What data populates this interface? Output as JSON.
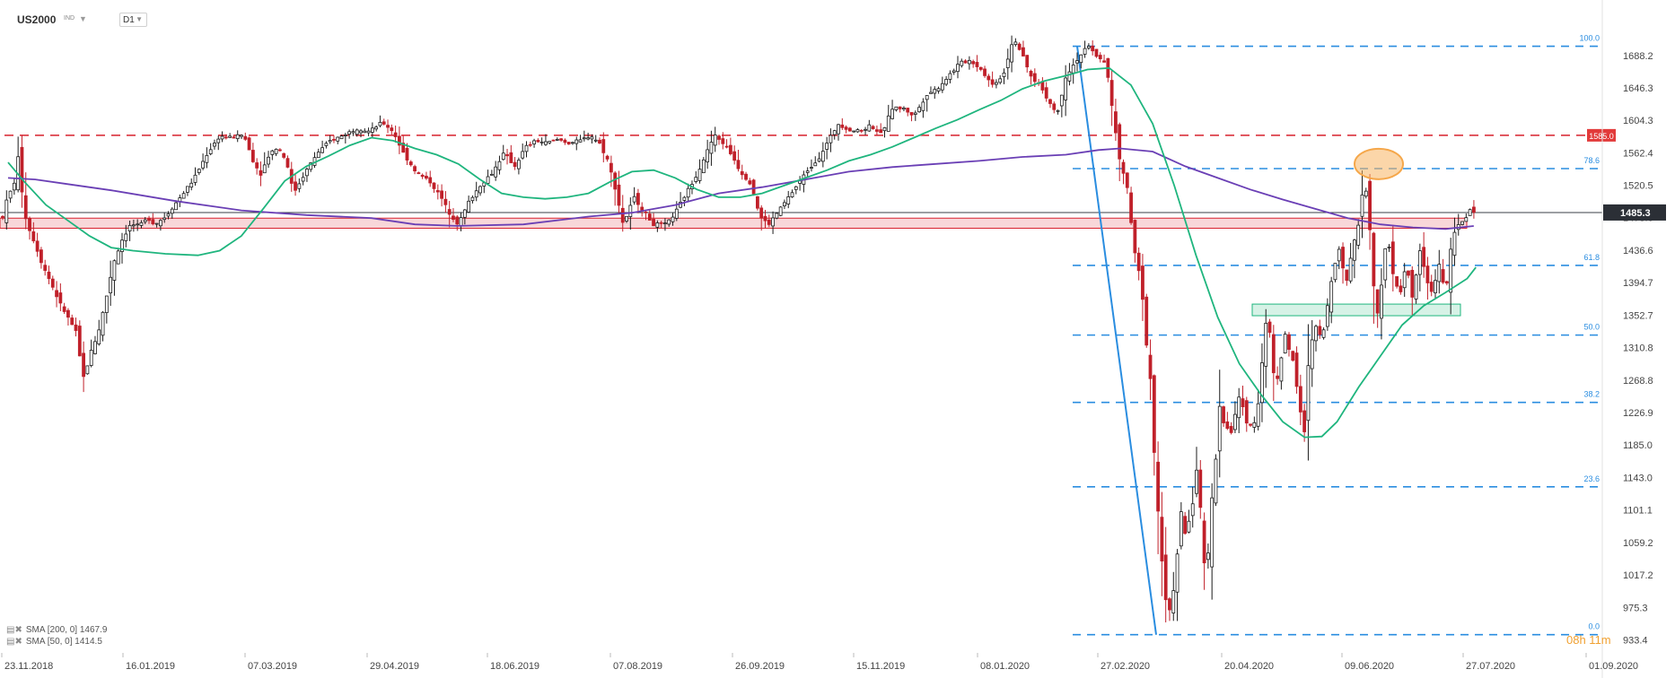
{
  "header": {
    "symbol": "US2000",
    "sub": "IND",
    "timeframe": "D1"
  },
  "legend": [
    {
      "label": "SMA [200, 0] 1467.9",
      "color": "#6a3fb5"
    },
    {
      "label": "SMA [50, 0] 1414.5",
      "color": "#1fb57e"
    }
  ],
  "countdown": "08h 11m",
  "colors": {
    "up": "#1b1b1b",
    "down": "#c0202a",
    "fib": "#2a8de0",
    "resistance": "#d8202c",
    "sma200": "#6a3fb5",
    "sma50": "#1fb57e",
    "price_tag": "#2b2f36",
    "zone_red": "#f8d7d9",
    "zone_green": "#d6f2e6",
    "ellipse": "#f5a74a"
  },
  "chart_data": {
    "type": "candlestick",
    "ylim": [
      920,
      1725
    ],
    "y_ticks": [
      "1688.2",
      "1646.3",
      "1604.3",
      "1562.4",
      "1520.5",
      "1478.6",
      "1436.6",
      "1394.7",
      "1352.7",
      "1310.8",
      "1268.8",
      "1226.9",
      "1185.0",
      "1143.0",
      "1101.1",
      "1059.2",
      "1017.2",
      "975.3",
      "933.4"
    ],
    "x_ticks": [
      "23.11.2018",
      "16.01.2019",
      "07.03.2019",
      "29.04.2019",
      "18.06.2019",
      "07.08.2019",
      "26.09.2019",
      "15.11.2019",
      "08.01.2020",
      "27.02.2020",
      "20.04.2020",
      "09.06.2020",
      "27.07.2020",
      "01.09.2020"
    ],
    "current_price": "1485.3",
    "resistance": {
      "value": 1585.0,
      "label": "1585.0"
    },
    "fib_levels": [
      {
        "value": 1700,
        "label": "100.0"
      },
      {
        "value": 1542,
        "label": "78.6"
      },
      {
        "value": 1417,
        "label": "61.8"
      },
      {
        "value": 1327,
        "label": "50.0"
      },
      {
        "value": 1240,
        "label": "38.2"
      },
      {
        "value": 1131,
        "label": "23.6"
      },
      {
        "value": 940,
        "label": "0.0"
      }
    ],
    "zones": [
      {
        "type": "red",
        "from": 1465,
        "to": 1478
      },
      {
        "type": "green",
        "from": 1352,
        "to": 1367
      }
    ],
    "price_path": [
      [
        0,
        1480
      ],
      [
        5,
        1508
      ],
      [
        10,
        1518
      ],
      [
        14,
        1558
      ],
      [
        18,
        1510
      ],
      [
        22,
        1472
      ],
      [
        28,
        1452
      ],
      [
        36,
        1420
      ],
      [
        44,
        1396
      ],
      [
        52,
        1370
      ],
      [
        60,
        1350
      ],
      [
        68,
        1330
      ],
      [
        72,
        1288
      ],
      [
        75,
        1270
      ],
      [
        80,
        1300
      ],
      [
        88,
        1330
      ],
      [
        95,
        1372
      ],
      [
        102,
        1420
      ],
      [
        110,
        1450
      ],
      [
        118,
        1470
      ],
      [
        126,
        1468
      ],
      [
        134,
        1478
      ],
      [
        140,
        1470
      ],
      [
        150,
        1480
      ],
      [
        162,
        1502
      ],
      [
        176,
        1528
      ],
      [
        188,
        1560
      ],
      [
        200,
        1584
      ],
      [
        212,
        1582
      ],
      [
        222,
        1586
      ],
      [
        232,
        1548
      ],
      [
        238,
        1535
      ],
      [
        246,
        1562
      ],
      [
        254,
        1570
      ],
      [
        262,
        1550
      ],
      [
        268,
        1510
      ],
      [
        278,
        1535
      ],
      [
        290,
        1562
      ],
      [
        302,
        1578
      ],
      [
        314,
        1585
      ],
      [
        326,
        1594
      ],
      [
        338,
        1590
      ],
      [
        350,
        1602
      ],
      [
        360,
        1590
      ],
      [
        370,
        1560
      ],
      [
        382,
        1536
      ],
      [
        394,
        1525
      ],
      [
        404,
        1505
      ],
      [
        412,
        1484
      ],
      [
        420,
        1470
      ],
      [
        430,
        1500
      ],
      [
        440,
        1520
      ],
      [
        452,
        1538
      ],
      [
        462,
        1562
      ],
      [
        472,
        1545
      ],
      [
        482,
        1570
      ],
      [
        492,
        1578
      ],
      [
        502,
        1575
      ],
      [
        512,
        1580
      ],
      [
        522,
        1575
      ],
      [
        532,
        1578
      ],
      [
        542,
        1585
      ],
      [
        550,
        1575
      ],
      [
        558,
        1552
      ],
      [
        564,
        1520
      ],
      [
        572,
        1470
      ],
      [
        582,
        1505
      ],
      [
        592,
        1485
      ],
      [
        600,
        1470
      ],
      [
        612,
        1470
      ],
      [
        620,
        1485
      ],
      [
        630,
        1510
      ],
      [
        640,
        1535
      ],
      [
        648,
        1560
      ],
      [
        656,
        1585
      ],
      [
        664,
        1575
      ],
      [
        672,
        1560
      ],
      [
        680,
        1538
      ],
      [
        690,
        1522
      ],
      [
        698,
        1480
      ],
      [
        706,
        1470
      ],
      [
        714,
        1485
      ],
      [
        722,
        1500
      ],
      [
        732,
        1520
      ],
      [
        742,
        1540
      ],
      [
        752,
        1555
      ],
      [
        760,
        1575
      ],
      [
        770,
        1600
      ],
      [
        780,
        1592
      ],
      [
        790,
        1590
      ],
      [
        800,
        1598
      ],
      [
        810,
        1586
      ],
      [
        820,
        1620
      ],
      [
        830,
        1620
      ],
      [
        840,
        1610
      ],
      [
        852,
        1638
      ],
      [
        862,
        1646
      ],
      [
        872,
        1662
      ],
      [
        882,
        1678
      ],
      [
        892,
        1682
      ],
      [
        902,
        1670
      ],
      [
        912,
        1650
      ],
      [
        922,
        1662
      ],
      [
        932,
        1712
      ],
      [
        940,
        1688
      ],
      [
        948,
        1660
      ],
      [
        956,
        1650
      ],
      [
        966,
        1625
      ],
      [
        972,
        1612
      ],
      [
        980,
        1662
      ],
      [
        990,
        1682
      ],
      [
        1000,
        1700
      ],
      [
        1008,
        1688
      ],
      [
        1016,
        1680
      ],
      [
        1020,
        1650
      ],
      [
        1024,
        1605
      ],
      [
        1030,
        1550
      ],
      [
        1038,
        1510
      ],
      [
        1042,
        1440
      ],
      [
        1046,
        1420
      ],
      [
        1050,
        1385
      ],
      [
        1054,
        1320
      ],
      [
        1058,
        1270
      ],
      [
        1062,
        1160
      ],
      [
        1066,
        1080
      ],
      [
        1070,
        1010
      ],
      [
        1074,
        960
      ],
      [
        1078,
        985
      ],
      [
        1082,
        1030
      ],
      [
        1086,
        1100
      ],
      [
        1090,
        1070
      ],
      [
        1096,
        1100
      ],
      [
        1102,
        1170
      ],
      [
        1106,
        1040
      ],
      [
        1110,
        1020
      ],
      [
        1114,
        1110
      ],
      [
        1118,
        1160
      ],
      [
        1122,
        1240
      ],
      [
        1126,
        1210
      ],
      [
        1132,
        1200
      ],
      [
        1140,
        1250
      ],
      [
        1148,
        1205
      ],
      [
        1156,
        1220
      ],
      [
        1162,
        1310
      ],
      [
        1166,
        1365
      ],
      [
        1170,
        1290
      ],
      [
        1174,
        1260
      ],
      [
        1182,
        1328
      ],
      [
        1190,
        1290
      ],
      [
        1196,
        1230
      ],
      [
        1200,
        1200
      ],
      [
        1204,
        1300
      ],
      [
        1210,
        1340
      ],
      [
        1216,
        1320
      ],
      [
        1222,
        1370
      ],
      [
        1226,
        1410
      ],
      [
        1232,
        1440
      ],
      [
        1238,
        1390
      ],
      [
        1244,
        1440
      ],
      [
        1250,
        1470
      ],
      [
        1254,
        1520
      ],
      [
        1258,
        1510
      ],
      [
        1262,
        1430
      ],
      [
        1266,
        1345
      ],
      [
        1270,
        1380
      ],
      [
        1276,
        1460
      ],
      [
        1282,
        1400
      ],
      [
        1288,
        1380
      ],
      [
        1294,
        1420
      ],
      [
        1300,
        1370
      ],
      [
        1306,
        1440
      ],
      [
        1312,
        1400
      ],
      [
        1318,
        1380
      ],
      [
        1324,
        1420
      ],
      [
        1330,
        1380
      ],
      [
        1336,
        1450
      ],
      [
        1342,
        1470
      ],
      [
        1348,
        1478
      ],
      [
        1354,
        1490
      ],
      [
        1357,
        1485
      ]
    ],
    "sma200": [
      [
        5,
        1530
      ],
      [
        30,
        1528
      ],
      [
        60,
        1522
      ],
      [
        100,
        1514
      ],
      [
        160,
        1500
      ],
      [
        220,
        1488
      ],
      [
        280,
        1482
      ],
      [
        340,
        1478
      ],
      [
        380,
        1470
      ],
      [
        420,
        1468
      ],
      [
        480,
        1470
      ],
      [
        540,
        1480
      ],
      [
        580,
        1485
      ],
      [
        620,
        1495
      ],
      [
        660,
        1510
      ],
      [
        700,
        1518
      ],
      [
        740,
        1528
      ],
      [
        780,
        1538
      ],
      [
        820,
        1544
      ],
      [
        860,
        1548
      ],
      [
        900,
        1552
      ],
      [
        940,
        1557
      ],
      [
        980,
        1560
      ],
      [
        1010,
        1566
      ],
      [
        1030,
        1568
      ],
      [
        1060,
        1564
      ],
      [
        1090,
        1545
      ],
      [
        1120,
        1530
      ],
      [
        1150,
        1515
      ],
      [
        1180,
        1502
      ],
      [
        1210,
        1490
      ],
      [
        1240,
        1478
      ],
      [
        1270,
        1470
      ],
      [
        1300,
        1466
      ],
      [
        1330,
        1464
      ],
      [
        1356,
        1467.9
      ]
    ],
    "sma50": [
      [
        5,
        1550
      ],
      [
        20,
        1525
      ],
      [
        40,
        1495
      ],
      [
        60,
        1475
      ],
      [
        80,
        1455
      ],
      [
        100,
        1440
      ],
      [
        120,
        1436
      ],
      [
        150,
        1432
      ],
      [
        180,
        1430
      ],
      [
        200,
        1436
      ],
      [
        220,
        1455
      ],
      [
        240,
        1490
      ],
      [
        260,
        1526
      ],
      [
        280,
        1545
      ],
      [
        300,
        1558
      ],
      [
        320,
        1572
      ],
      [
        340,
        1582
      ],
      [
        360,
        1578
      ],
      [
        380,
        1568
      ],
      [
        400,
        1560
      ],
      [
        420,
        1548
      ],
      [
        440,
        1528
      ],
      [
        460,
        1510
      ],
      [
        480,
        1505
      ],
      [
        500,
        1503
      ],
      [
        520,
        1505
      ],
      [
        540,
        1510
      ],
      [
        560,
        1525
      ],
      [
        580,
        1538
      ],
      [
        600,
        1540
      ],
      [
        620,
        1530
      ],
      [
        640,
        1515
      ],
      [
        660,
        1505
      ],
      [
        680,
        1505
      ],
      [
        700,
        1510
      ],
      [
        720,
        1520
      ],
      [
        740,
        1530
      ],
      [
        760,
        1540
      ],
      [
        780,
        1552
      ],
      [
        800,
        1560
      ],
      [
        820,
        1570
      ],
      [
        840,
        1582
      ],
      [
        860,
        1594
      ],
      [
        880,
        1605
      ],
      [
        900,
        1618
      ],
      [
        920,
        1630
      ],
      [
        940,
        1645
      ],
      [
        960,
        1655
      ],
      [
        980,
        1662
      ],
      [
        1000,
        1670
      ],
      [
        1020,
        1672
      ],
      [
        1040,
        1650
      ],
      [
        1060,
        1600
      ],
      [
        1080,
        1520
      ],
      [
        1100,
        1430
      ],
      [
        1120,
        1350
      ],
      [
        1140,
        1290
      ],
      [
        1160,
        1250
      ],
      [
        1180,
        1215
      ],
      [
        1200,
        1195
      ],
      [
        1216,
        1196
      ],
      [
        1230,
        1215
      ],
      [
        1250,
        1260
      ],
      [
        1270,
        1300
      ],
      [
        1290,
        1340
      ],
      [
        1310,
        1365
      ],
      [
        1330,
        1382
      ],
      [
        1350,
        1400
      ],
      [
        1358,
        1414.5
      ]
    ]
  }
}
